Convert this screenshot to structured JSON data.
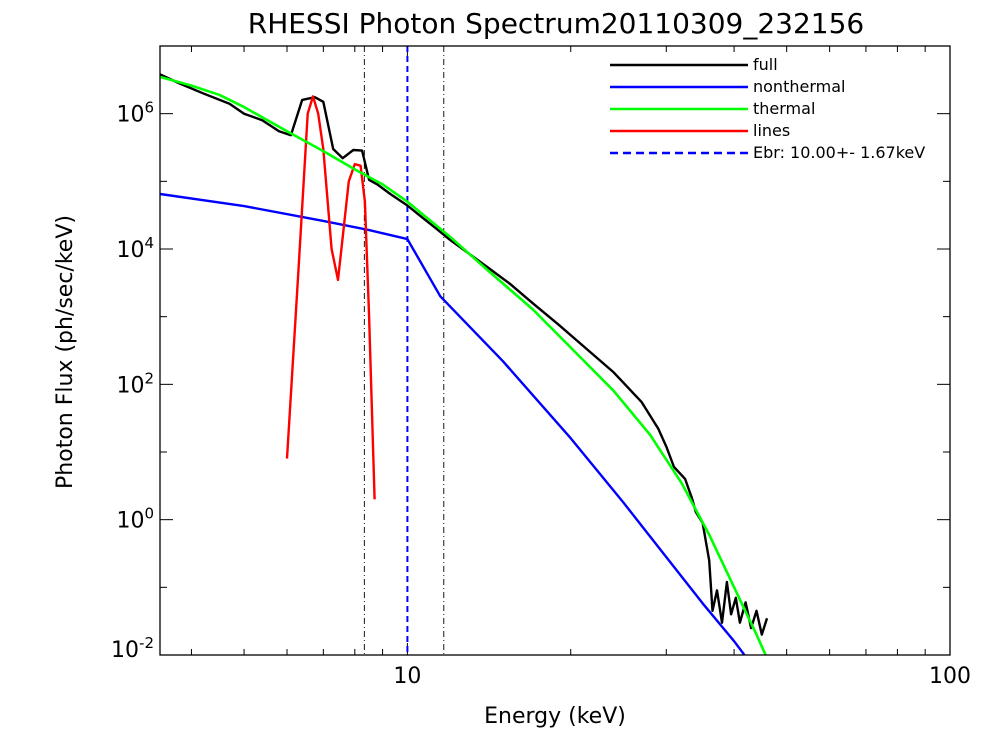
{
  "chart_data": {
    "type": "line",
    "title": "RHESSI Photon Spectrum20110309_232156",
    "xlabel": "Energy (keV)",
    "ylabel": "Photon Flux (ph/sec/keV)",
    "xscale": "log",
    "yscale": "log",
    "xlim": [
      3.5,
      100
    ],
    "ylim": [
      0.01,
      10000000
    ],
    "x_ticks": [
      {
        "value": 10,
        "label": "10"
      },
      {
        "value": 100,
        "label": "100"
      }
    ],
    "y_ticks": [
      {
        "value": 0.01,
        "base": "10",
        "exp": "-2"
      },
      {
        "value": 1,
        "base": "10",
        "exp": "0"
      },
      {
        "value": 100,
        "base": "10",
        "exp": "2"
      },
      {
        "value": 10000,
        "base": "10",
        "exp": "4"
      },
      {
        "value": 1000000,
        "base": "10",
        "exp": "6"
      }
    ],
    "legend_position": "top-right",
    "series": [
      {
        "name": "full",
        "color": "#000000",
        "style": "solid",
        "points": [
          [
            3.5,
            3800000.0
          ],
          [
            3.8,
            2800000.0
          ],
          [
            4.2,
            2000000.0
          ],
          [
            4.7,
            1400000.0
          ],
          [
            5.0,
            1000000.0
          ],
          [
            5.4,
            800000.0
          ],
          [
            5.8,
            550000.0
          ],
          [
            6.1,
            480000.0
          ],
          [
            6.4,
            1600000.0
          ],
          [
            6.75,
            1750000.0
          ],
          [
            7.0,
            1500000.0
          ],
          [
            7.3,
            300000.0
          ],
          [
            7.6,
            220000.0
          ],
          [
            7.95,
            290000.0
          ],
          [
            8.25,
            285000.0
          ],
          [
            8.5,
            105000.0
          ],
          [
            8.8,
            90000.0
          ],
          [
            9.3,
            65000.0
          ],
          [
            10.0,
            44000.0
          ],
          [
            10.5,
            32000.0
          ],
          [
            11.3,
            20000.0
          ],
          [
            12.0,
            13500.0
          ],
          [
            13.0,
            8500.0
          ],
          [
            14.0,
            5500.0
          ],
          [
            15.5,
            3000.0
          ],
          [
            17.0,
            1600.0
          ],
          [
            19.0,
            760
          ],
          [
            21.0,
            380
          ],
          [
            24.0,
            150
          ],
          [
            27.0,
            55
          ],
          [
            29.0,
            22
          ],
          [
            30.0,
            12
          ],
          [
            31.0,
            6
          ],
          [
            32.5,
            4
          ],
          [
            33.5,
            2
          ],
          [
            34.0,
            1.3
          ],
          [
            35.0,
            0.9
          ],
          [
            36.0,
            0.25
          ],
          [
            36.5,
            0.045
          ],
          [
            37.2,
            0.09
          ],
          [
            38.0,
            0.03
          ],
          [
            38.8,
            0.12
          ],
          [
            39.5,
            0.04
          ],
          [
            40.3,
            0.07
          ],
          [
            41.0,
            0.03
          ],
          [
            42.0,
            0.06
          ],
          [
            43.0,
            0.025
          ],
          [
            44.0,
            0.045
          ],
          [
            45.0,
            0.02
          ],
          [
            46.0,
            0.035
          ]
        ]
      },
      {
        "name": "nonthermal",
        "color": "#0000ff",
        "style": "solid",
        "points": [
          [
            3.5,
            65000.0
          ],
          [
            5.0,
            43000.0
          ],
          [
            7.0,
            26000.0
          ],
          [
            8.5,
            19000.0
          ],
          [
            10.0,
            14000.0
          ],
          [
            11.5,
            2000.0
          ],
          [
            15.0,
            220
          ],
          [
            20.0,
            16
          ],
          [
            25.0,
            1.8
          ],
          [
            30.0,
            0.28
          ],
          [
            35.0,
            0.058
          ],
          [
            40.0,
            0.016
          ],
          [
            42.0,
            0.0095
          ]
        ]
      },
      {
        "name": "thermal",
        "color": "#00ff00",
        "style": "solid",
        "points": [
          [
            3.5,
            3500000.0
          ],
          [
            4.0,
            2600000.0
          ],
          [
            4.5,
            1900000.0
          ],
          [
            5.0,
            1250000.0
          ],
          [
            6.0,
            550000.0
          ],
          [
            7.0,
            280000.0
          ],
          [
            8.0,
            150000.0
          ],
          [
            9.0,
            90000.0
          ],
          [
            10.0,
            50000.0
          ],
          [
            12.0,
            15000.0
          ],
          [
            14.0,
            5000.0
          ],
          [
            17.0,
            1300.0
          ],
          [
            20.0,
            350
          ],
          [
            24.0,
            80
          ],
          [
            28.0,
            18
          ],
          [
            32.0,
            3.5
          ],
          [
            36.0,
            0.6
          ],
          [
            40.0,
            0.1
          ],
          [
            44.0,
            0.02
          ],
          [
            46.0,
            0.009
          ]
        ]
      },
      {
        "name": "lines",
        "color": "#ff0000",
        "style": "solid",
        "points": [
          [
            6.0,
            8
          ],
          [
            6.3,
            5000.0
          ],
          [
            6.55,
            1000000.0
          ],
          [
            6.7,
            1800000.0
          ],
          [
            6.85,
            1000000.0
          ],
          [
            7.0,
            300000.0
          ],
          [
            7.25,
            10000.0
          ],
          [
            7.45,
            3500.0
          ],
          [
            7.6,
            15000.0
          ],
          [
            7.8,
            100000.0
          ],
          [
            8.0,
            180000.0
          ],
          [
            8.2,
            170000.0
          ],
          [
            8.35,
            50000.0
          ],
          [
            8.5,
            1000.0
          ],
          [
            8.7,
            2.0
          ]
        ]
      },
      {
        "name": "Ebr: 10.00+- 1.67keV",
        "color": "#0000ff",
        "style": "dashed",
        "vertical_x": 10.0
      }
    ],
    "reference_lines": [
      {
        "x": 8.33,
        "style": "dash-dot",
        "color": "#000000"
      },
      {
        "x": 11.67,
        "style": "dash-dot",
        "color": "#000000"
      }
    ]
  }
}
